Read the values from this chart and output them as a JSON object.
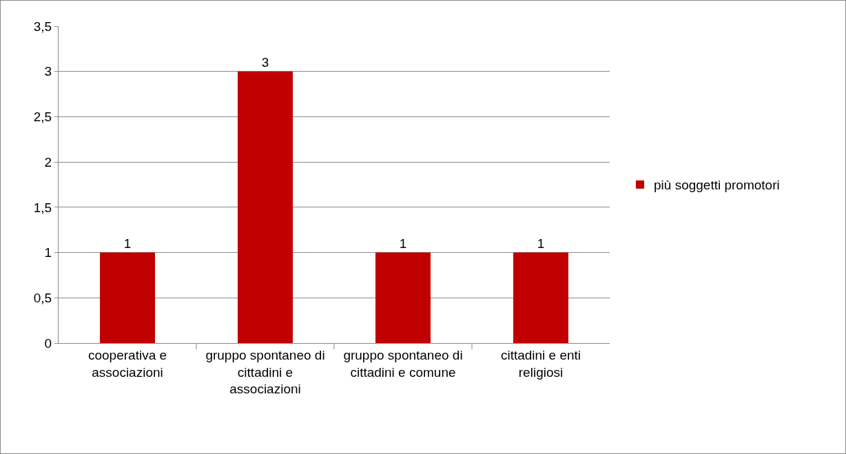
{
  "chart_data": {
    "type": "bar",
    "categories": [
      "cooperativa e associazioni",
      "gruppo spontaneo di cittadini e associazioni",
      "gruppo spontaneo di cittadini e comune",
      "cittadini e enti religiosi"
    ],
    "series": [
      {
        "name": "più soggetti promotori",
        "color": "#c00000",
        "values": [
          1,
          3,
          1,
          1
        ]
      }
    ],
    "ylim": [
      0,
      3.5
    ],
    "yticks": [
      0,
      {
        "value": 0.5,
        "label": "0,5"
      },
      1,
      {
        "value": 1.5,
        "label": "1,5"
      },
      2,
      {
        "value": 2.5,
        "label": "2,5"
      },
      3,
      {
        "value": 3.5,
        "label": "3,5"
      }
    ],
    "grid": "y",
    "legend": "right",
    "data_labels": true
  }
}
